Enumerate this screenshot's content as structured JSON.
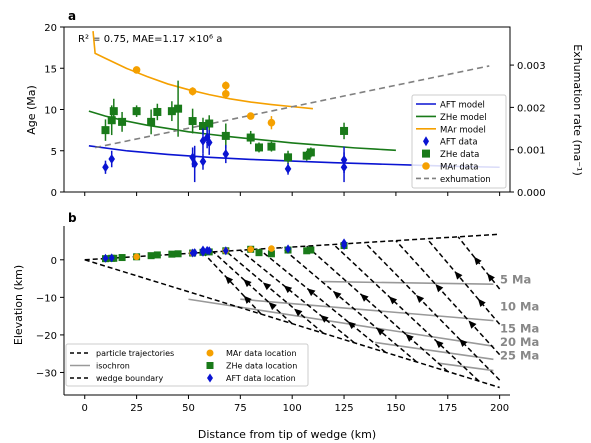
{
  "colors": {
    "aft": "#0a14d2",
    "zhe": "#197a19",
    "mar": "#f5a000",
    "exhumation": "#808080",
    "isochron": "#999999",
    "black": "#000000"
  },
  "chart_data": [
    {
      "type": "scatter",
      "panel_label": "a",
      "annotation": "R² = 0.75, MAE=1.17 ×10⁶ a",
      "xlim": [
        -10,
        205
      ],
      "ylim": [
        0,
        20
      ],
      "yticks": [
        0,
        5,
        10,
        15,
        20
      ],
      "ylabel": "Age (Ma)",
      "y2label": "Exhumation rate (ma⁻¹)",
      "y2lim": [
        0,
        0.0039
      ],
      "y2ticks": [
        "0.000",
        "0.001",
        "0.002",
        "0.003"
      ],
      "y2tick_values": [
        0,
        0.001,
        0.002,
        0.003
      ],
      "legend": [
        "AFT model",
        "ZHe model",
        "MAr model",
        "AFT data",
        "ZHe data",
        "MAr data",
        "exhumation"
      ],
      "legend_position": "right",
      "models": [
        {
          "name": "AFT model",
          "x": [
            2,
            20,
            40,
            60,
            80,
            100,
            120,
            140,
            160,
            180,
            200
          ],
          "y": [
            5.6,
            5.0,
            4.55,
            4.2,
            3.95,
            3.75,
            3.55,
            3.4,
            3.25,
            3.1,
            3.0
          ]
        },
        {
          "name": "ZHe model",
          "x": [
            2,
            10,
            20,
            30,
            40,
            50,
            60,
            70,
            80,
            90,
            100,
            110,
            120,
            130,
            140,
            150
          ],
          "y": [
            9.8,
            9.2,
            8.6,
            8.1,
            7.7,
            7.3,
            7.0,
            6.7,
            6.45,
            6.2,
            5.95,
            5.75,
            5.55,
            5.35,
            5.2,
            5.05
          ]
        },
        {
          "name": "MAr model",
          "x": [
            4,
            5,
            10,
            20,
            30,
            40,
            50,
            60,
            70,
            80,
            90,
            100,
            110
          ],
          "y": [
            19.5,
            16.8,
            16.2,
            15.0,
            14.0,
            13.1,
            12.4,
            11.8,
            11.3,
            10.9,
            10.6,
            10.35,
            10.1
          ]
        }
      ],
      "exhumation": {
        "name": "exhumation",
        "x": [
          5,
          195
        ],
        "y": [
          0.00105,
          0.00298
        ]
      },
      "aft_data": [
        {
          "x": 10,
          "y": 3.0,
          "err": 0.8
        },
        {
          "x": 13,
          "y": 4.0,
          "err": 1.0
        },
        {
          "x": 52,
          "y": 4.2,
          "err": 1.2
        },
        {
          "x": 53,
          "y": 3.4,
          "err": 2.2
        },
        {
          "x": 57,
          "y": 3.7,
          "err": 1.0
        },
        {
          "x": 57,
          "y": 6.2,
          "err": 1.5
        },
        {
          "x": 59,
          "y": 6.6,
          "err": 1.3
        },
        {
          "x": 60,
          "y": 6.0,
          "err": 1.5
        },
        {
          "x": 68,
          "y": 4.6,
          "err": 1.1
        },
        {
          "x": 98,
          "y": 2.8,
          "err": 0.7
        },
        {
          "x": 125,
          "y": 3.9,
          "err": 1.6
        },
        {
          "x": 125,
          "y": 3.0,
          "err": 1.8
        }
      ],
      "zhe_data": [
        {
          "x": 10,
          "y": 7.5,
          "err": 1.3
        },
        {
          "x": 13,
          "y": 8.7,
          "err": 1.8
        },
        {
          "x": 14,
          "y": 9.8,
          "err": 1.5
        },
        {
          "x": 18,
          "y": 8.5,
          "err": 1.2
        },
        {
          "x": 25,
          "y": 9.8,
          "err": 0.7
        },
        {
          "x": 32,
          "y": 8.5,
          "err": 1.5
        },
        {
          "x": 35,
          "y": 9.7,
          "err": 1.0
        },
        {
          "x": 42,
          "y": 9.8,
          "err": 1.2
        },
        {
          "x": 45,
          "y": 10.1,
          "err": 3.4
        },
        {
          "x": 52,
          "y": 8.6,
          "err": 1.5
        },
        {
          "x": 57,
          "y": 8.0,
          "err": 1.0
        },
        {
          "x": 60,
          "y": 8.3,
          "err": 1.0
        },
        {
          "x": 68,
          "y": 6.8,
          "err": 1.5
        },
        {
          "x": 80,
          "y": 6.6,
          "err": 0.8
        },
        {
          "x": 84,
          "y": 5.4,
          "err": 0.6
        },
        {
          "x": 90,
          "y": 5.5,
          "err": 0.6
        },
        {
          "x": 98,
          "y": 4.2,
          "err": 0.8
        },
        {
          "x": 107,
          "y": 4.4,
          "err": 0.6
        },
        {
          "x": 109,
          "y": 4.8,
          "err": 0.6
        },
        {
          "x": 125,
          "y": 7.4,
          "err": 1.0
        }
      ],
      "mar_data": [
        {
          "x": 25,
          "y": 14.8,
          "err": 0.3
        },
        {
          "x": 52,
          "y": 12.2,
          "err": 0.5
        },
        {
          "x": 68,
          "y": 12.9,
          "err": 0.5
        },
        {
          "x": 68,
          "y": 11.9,
          "err": 0.6
        },
        {
          "x": 80,
          "y": 9.2,
          "err": 0.4
        },
        {
          "x": 90,
          "y": 8.4,
          "err": 0.8
        }
      ]
    },
    {
      "type": "line",
      "panel_label": "b",
      "xlim": [
        -10,
        205
      ],
      "ylim": [
        -36,
        9
      ],
      "xticks": [
        0,
        25,
        50,
        75,
        100,
        125,
        150,
        175,
        200
      ],
      "yticks": [
        -30,
        -20,
        -10,
        0
      ],
      "xlabel": "Distance from tip of wedge (km)",
      "ylabel": "Elevation (km)",
      "legend": [
        "particle trajectories",
        "isochron",
        "wedge boundary",
        "MAr data location",
        "ZHe data location",
        "AFT data location"
      ],
      "legend_position": "lower left",
      "wedge_top_slope": 0.034,
      "wedge_bottom_slope": -0.17,
      "trajectory_start_x": [
        85,
        100,
        115,
        130,
        145,
        160,
        175,
        190,
        205,
        220,
        235,
        250
      ],
      "trajectory_end_x": [
        57,
        62,
        68,
        75,
        84,
        95,
        107,
        120,
        135,
        150,
        165,
        180
      ],
      "isochrons": [
        {
          "label": "5 Ma",
          "x": [
            115,
            197
          ],
          "y": [
            -5.8,
            -6.5
          ]
        },
        {
          "label": "10 Ma",
          "x": [
            75,
            197
          ],
          "y": [
            -10.5,
            -16.2
          ]
        },
        {
          "label": "15 Ma",
          "x": [
            50,
            197
          ],
          "y": [
            -10.5,
            -23.0
          ]
        },
        {
          "label": "20 Ma",
          "x": [
            140,
            197
          ],
          "y": [
            -22.0,
            -26.5
          ]
        },
        {
          "label": "25 Ma",
          "x": [
            170,
            197
          ],
          "y": [
            -27.5,
            -29.5
          ]
        }
      ],
      "isochron_labels": [
        "5 Ma",
        "10 Ma",
        "15 Ma",
        "20 Ma",
        "25 Ma"
      ],
      "isochron_label_y": [
        -5.2,
        -12.5,
        -18.3,
        -21.9,
        -25.5
      ],
      "aft_locations": {
        "x": [
          10,
          13,
          52,
          53,
          57,
          57,
          59,
          60,
          68,
          98,
          125,
          125
        ],
        "y": [
          0.4,
          0.5,
          1.8,
          1.9,
          2.0,
          2.6,
          2.5,
          2.4,
          2.4,
          2.9,
          3.8,
          4.5
        ]
      },
      "zhe_locations": {
        "x": [
          10,
          13,
          14,
          18,
          25,
          32,
          35,
          42,
          45,
          52,
          57,
          60,
          68,
          80,
          84,
          90,
          98,
          107,
          109,
          125
        ],
        "y": [
          0.3,
          0.4,
          0.4,
          0.6,
          0.8,
          1.1,
          1.3,
          1.5,
          1.6,
          1.8,
          2.0,
          2.1,
          2.4,
          2.8,
          1.9,
          1.6,
          2.6,
          2.4,
          2.6,
          3.8
        ]
      },
      "mar_locations": {
        "x": [
          25,
          52,
          68,
          80,
          90
        ],
        "y": [
          0.8,
          1.8,
          2.4,
          2.8,
          3.0
        ]
      }
    }
  ]
}
